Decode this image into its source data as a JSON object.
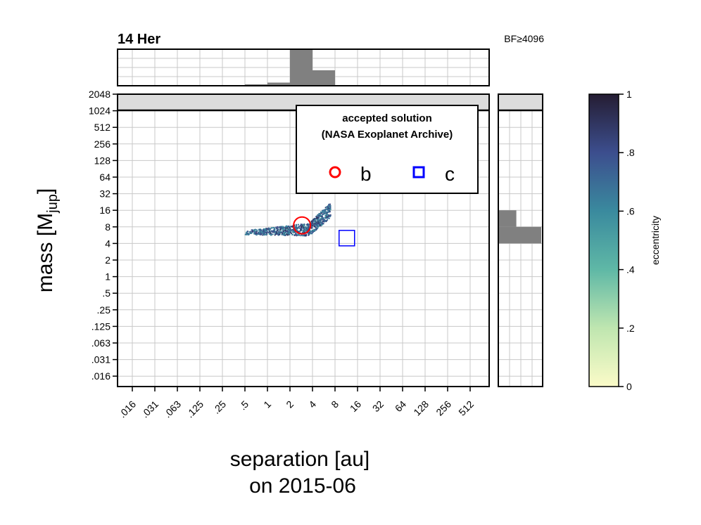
{
  "chart_data": {
    "type": "scatter",
    "title": "14 Her",
    "annotation": "BF≥4096",
    "xlabel_line1": "separation [au]",
    "xlabel_line2": "on 2015-06",
    "ylabel_main": "mass [M",
    "ylabel_sub": "jup",
    "ylabel_close": "]",
    "x_scale": "log2",
    "y_scale": "log2",
    "x_ticks": [
      ".016",
      ".031",
      ".063",
      ".125",
      ".25",
      ".5",
      "1",
      "2",
      "4",
      "8",
      "16",
      "32",
      "64",
      "128",
      "256",
      "512"
    ],
    "y_ticks": [
      "2048",
      "1024",
      "512",
      "256",
      "128",
      "64",
      "32",
      "16",
      "8",
      "4",
      "2",
      "1",
      ".5",
      ".25",
      ".125",
      ".063",
      ".031",
      ".016"
    ],
    "colorbar": {
      "label": "eccentricity",
      "ticks": [
        "0",
        ".2",
        ".4",
        ".6",
        ".8",
        "1"
      ],
      "range": [
        0,
        1
      ]
    },
    "legend": {
      "title_line1": "accepted solution",
      "title_line2": "(NASA Exoplanet Archive)",
      "placement": "top-right",
      "entries": [
        {
          "label": "b",
          "marker": "circle",
          "color": "#ff0000"
        },
        {
          "label": "c",
          "marker": "square",
          "color": "#0000ff"
        }
      ]
    },
    "accepted_solutions": [
      {
        "name": "b",
        "separation_au": 2.9,
        "mass_mjup": 8.5,
        "color": "#ff0000"
      },
      {
        "name": "c",
        "separation_au": 11.5,
        "mass_mjup": 5.0,
        "color": "#0000ff"
      }
    ],
    "posterior_cloud": {
      "separation_range_au": [
        0.5,
        7.0
      ],
      "mass_range_mjup": [
        5.0,
        20.0
      ],
      "eccentricity_range": [
        0.5,
        0.95
      ]
    },
    "separation_histogram": [
      {
        "bin_start": 0.5,
        "bin_end": 1,
        "height": 0.02
      },
      {
        "bin_start": 1,
        "bin_end": 2,
        "height": 0.07
      },
      {
        "bin_start": 2,
        "bin_end": 4,
        "height": 1.0
      },
      {
        "bin_start": 4,
        "bin_end": 8,
        "height": 0.42
      }
    ],
    "mass_histogram": [
      {
        "bin_start": 8,
        "bin_end": 16,
        "height": 0.42
      },
      {
        "bin_start": 4,
        "bin_end": 8,
        "height": 1.0
      }
    ]
  }
}
